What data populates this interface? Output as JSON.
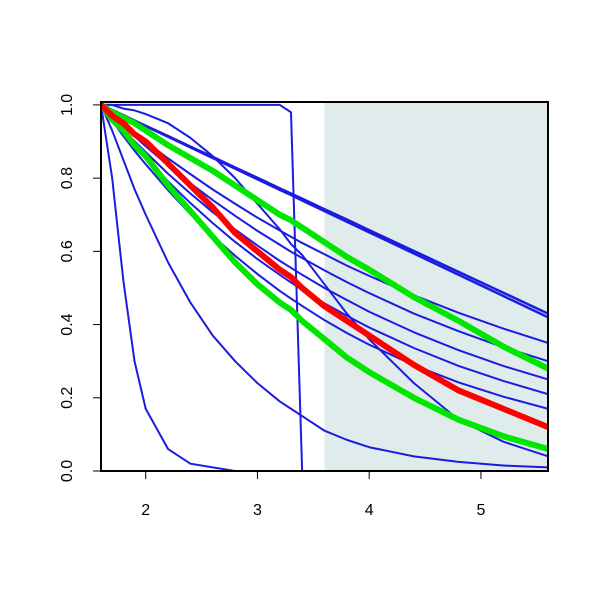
{
  "chart_data": {
    "type": "line",
    "xlim": [
      1.6,
      5.6
    ],
    "ylim": [
      0,
      1.008
    ],
    "xticks": [
      2,
      3,
      4,
      5
    ],
    "yticks": [
      {
        "value": 0,
        "label": "0.0"
      },
      {
        "value": 0.2,
        "label": "0.2"
      },
      {
        "value": 0.4,
        "label": "0.4"
      },
      {
        "value": 0.6,
        "label": "0.6"
      },
      {
        "value": 0.8,
        "label": "0.8"
      },
      {
        "value": 1,
        "label": "1.0"
      }
    ],
    "shaded_region": {
      "x": [
        3.6,
        5.6
      ],
      "color": "#e0ecec"
    },
    "x": [
      1.6,
      1.7,
      1.8,
      1.9,
      2.0,
      2.2,
      2.4,
      2.6,
      2.8,
      3.0,
      3.2,
      3.3,
      3.4,
      3.6,
      3.8,
      4.0,
      4.4,
      4.8,
      5.2,
      5.6
    ],
    "series": [
      {
        "color": "#1c1ce0",
        "width": 2,
        "values": [
          1,
          0.8,
          0.52,
          0.3,
          0.17,
          0.06,
          0.02,
          0.01,
          0,
          0,
          0,
          0,
          0,
          0,
          0,
          0,
          0,
          0,
          0,
          0
        ]
      },
      {
        "color": "#1c1ce0",
        "width": 2,
        "values": [
          1,
          0.93,
          0.85,
          0.77,
          0.7,
          0.57,
          0.46,
          0.37,
          0.3,
          0.24,
          0.19,
          0.17,
          0.15,
          0.11,
          0.085,
          0.065,
          0.04,
          0.025,
          0.015,
          0.01
        ]
      },
      {
        "color": "#1c1ce0",
        "width": 2,
        "values": [
          1,
          1,
          1,
          1,
          1,
          1,
          1,
          1,
          1,
          1,
          1,
          0.98,
          0,
          0,
          0,
          0,
          0,
          0,
          0,
          0
        ]
      },
      {
        "color": "#1c1ce0",
        "width": 2,
        "values": [
          1,
          1,
          0.99,
          0.985,
          0.975,
          0.95,
          0.91,
          0.86,
          0.8,
          0.73,
          0.66,
          0.62,
          0.59,
          0.51,
          0.43,
          0.36,
          0.24,
          0.14,
          0.08,
          0.04
        ]
      },
      {
        "color": "#1c1ce0",
        "width": 2.5,
        "values": [
          1,
          0.986,
          0.972,
          0.957,
          0.943,
          0.915,
          0.886,
          0.858,
          0.829,
          0.801,
          0.772,
          0.758,
          0.744,
          0.715,
          0.687,
          0.658,
          0.601,
          0.544,
          0.487,
          0.43
        ]
      },
      {
        "color": "#1c1ce0",
        "width": 2.5,
        "values": [
          1,
          0.986,
          0.971,
          0.957,
          0.942,
          0.913,
          0.884,
          0.855,
          0.826,
          0.797,
          0.768,
          0.754,
          0.739,
          0.71,
          0.681,
          0.652,
          0.594,
          0.536,
          0.478,
          0.42
        ]
      },
      {
        "color": "#1c1ce0",
        "width": 2,
        "values": [
          1,
          0.974,
          0.949,
          0.924,
          0.9,
          0.854,
          0.811,
          0.769,
          0.73,
          0.692,
          0.657,
          0.64,
          0.623,
          0.592,
          0.561,
          0.533,
          0.48,
          0.432,
          0.389,
          0.35
        ]
      },
      {
        "color": "#1c1ce0",
        "width": 2,
        "values": [
          1,
          0.97,
          0.942,
          0.914,
          0.887,
          0.835,
          0.786,
          0.74,
          0.697,
          0.656,
          0.618,
          0.599,
          0.582,
          0.548,
          0.516,
          0.486,
          0.43,
          0.382,
          0.338,
          0.3
        ]
      },
      {
        "color": "#1c1ce0",
        "width": 2,
        "values": [
          1,
          0.966,
          0.933,
          0.901,
          0.871,
          0.812,
          0.758,
          0.707,
          0.66,
          0.616,
          0.574,
          0.555,
          0.536,
          0.5,
          0.467,
          0.435,
          0.379,
          0.33,
          0.287,
          0.25
        ]
      },
      {
        "color": "#1c1ce0",
        "width": 2,
        "values": [
          1,
          0.962,
          0.925,
          0.89,
          0.856,
          0.791,
          0.732,
          0.677,
          0.626,
          0.579,
          0.536,
          0.515,
          0.495,
          0.458,
          0.424,
          0.392,
          0.336,
          0.287,
          0.246,
          0.21
        ]
      },
      {
        "color": "#1c1ce0",
        "width": 2,
        "values": [
          1,
          0.957,
          0.915,
          0.875,
          0.838,
          0.767,
          0.702,
          0.642,
          0.588,
          0.538,
          0.492,
          0.471,
          0.451,
          0.412,
          0.377,
          0.345,
          0.289,
          0.242,
          0.203,
          0.17
        ]
      },
      {
        "color": "#00e600",
        "width": 6,
        "values": [
          1,
          0.98,
          0.965,
          0.95,
          0.93,
          0.89,
          0.855,
          0.82,
          0.78,
          0.74,
          0.7,
          0.685,
          0.665,
          0.625,
          0.585,
          0.55,
          0.475,
          0.41,
          0.34,
          0.28
        ]
      },
      {
        "color": "#00e600",
        "width": 6,
        "values": [
          1,
          0.96,
          0.93,
          0.89,
          0.86,
          0.78,
          0.71,
          0.64,
          0.57,
          0.51,
          0.46,
          0.44,
          0.41,
          0.36,
          0.31,
          0.27,
          0.2,
          0.14,
          0.095,
          0.06
        ]
      },
      {
        "color": "#ff0000",
        "width": 6,
        "values": [
          1,
          0.97,
          0.95,
          0.92,
          0.9,
          0.84,
          0.78,
          0.72,
          0.65,
          0.6,
          0.55,
          0.53,
          0.5,
          0.45,
          0.41,
          0.37,
          0.29,
          0.22,
          0.17,
          0.12
        ]
      }
    ]
  }
}
